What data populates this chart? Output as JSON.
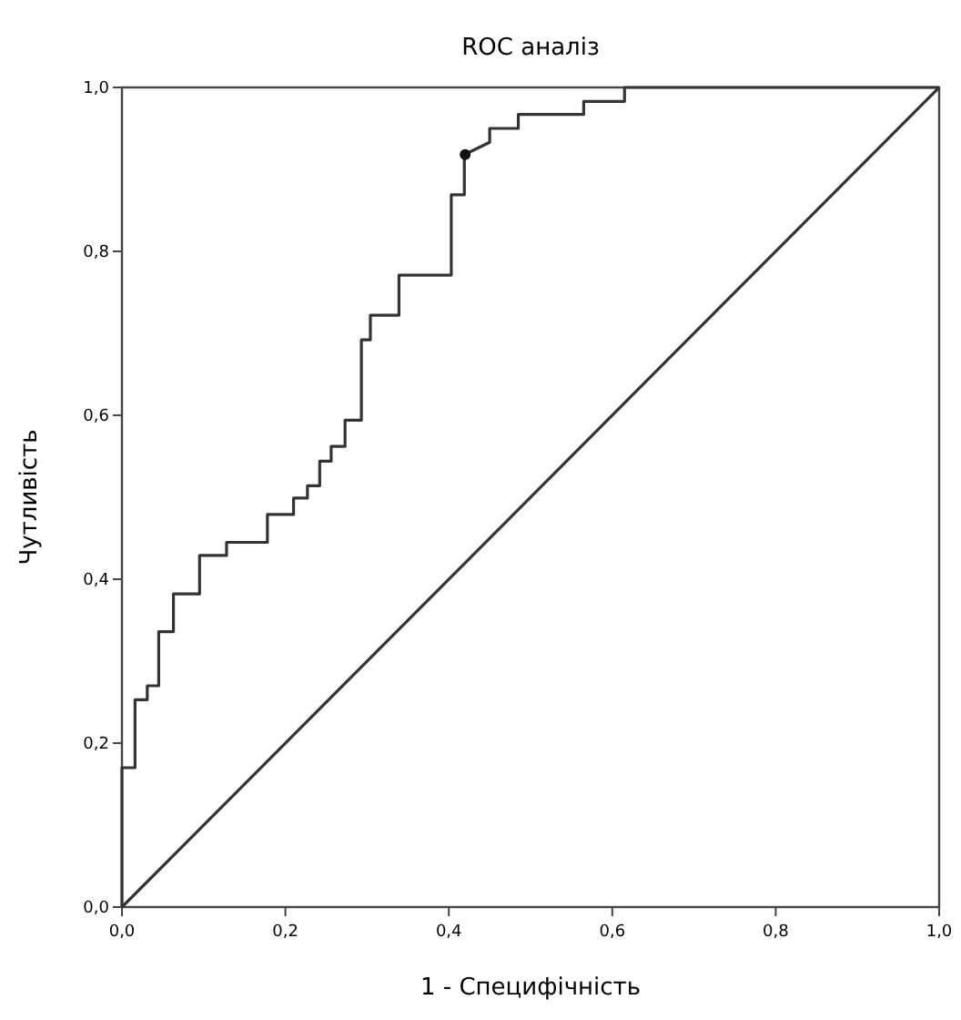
{
  "chart_data": {
    "type": "line",
    "title": "ROC аналіз",
    "xlabel": "1 - Специфічність",
    "ylabel": "Чутливість",
    "xlim": [
      0,
      1
    ],
    "ylim": [
      0,
      1
    ],
    "xticks": [
      {
        "value": 0,
        "label": "0,0"
      },
      {
        "value": 0.2,
        "label": "0,2"
      },
      {
        "value": 0.4,
        "label": "0,4"
      },
      {
        "value": 0.6,
        "label": "0,6"
      },
      {
        "value": 0.8,
        "label": "0,8"
      },
      {
        "value": 1,
        "label": "1,0"
      }
    ],
    "yticks": [
      {
        "value": 0,
        "label": "0,0"
      },
      {
        "value": 0.2,
        "label": "0,2"
      },
      {
        "value": 0.4,
        "label": "0,4"
      },
      {
        "value": 0.6,
        "label": "0,6"
      },
      {
        "value": 0.8,
        "label": "0,8"
      },
      {
        "value": 1,
        "label": "1,0"
      }
    ],
    "line_style": "solid",
    "marker": "none",
    "series": [
      {
        "color": "#333333",
        "x": [
          0,
          0,
          0.016,
          0.016,
          0.031,
          0.031,
          0.045,
          0.045,
          0.063,
          0.063,
          0.095,
          0.095,
          0.128,
          0.128,
          0.178,
          0.178,
          0.21,
          0.21,
          0.227,
          0.227,
          0.242,
          0.242,
          0.256,
          0.256,
          0.273,
          0.273,
          0.293,
          0.293,
          0.304,
          0.304,
          0.339,
          0.339,
          0.403,
          0.403,
          0.419,
          0.419,
          0.45,
          0.45,
          0.485,
          0.485,
          0.565,
          0.565,
          0.615,
          0.615,
          1
        ],
        "values": [
          0,
          0.17,
          0.17,
          0.253,
          0.253,
          0.27,
          0.27,
          0.336,
          0.336,
          0.382,
          0.382,
          0.429,
          0.429,
          0.445,
          0.445,
          0.479,
          0.479,
          0.499,
          0.499,
          0.514,
          0.514,
          0.544,
          0.544,
          0.562,
          0.562,
          0.594,
          0.594,
          0.692,
          0.692,
          0.722,
          0.722,
          0.771,
          0.771,
          0.869,
          0.869,
          0.918,
          0.933,
          0.95,
          0.95,
          0.967,
          0.967,
          0.983,
          0.983,
          1,
          1
        ]
      },
      {
        "type": "scatter",
        "marker": "circle",
        "color": "#111111",
        "x": [
          0.42
        ],
        "values": [
          0.918
        ]
      },
      {
        "color": "#333333",
        "x": [
          0,
          1
        ],
        "values": [
          0,
          1
        ]
      }
    ]
  }
}
